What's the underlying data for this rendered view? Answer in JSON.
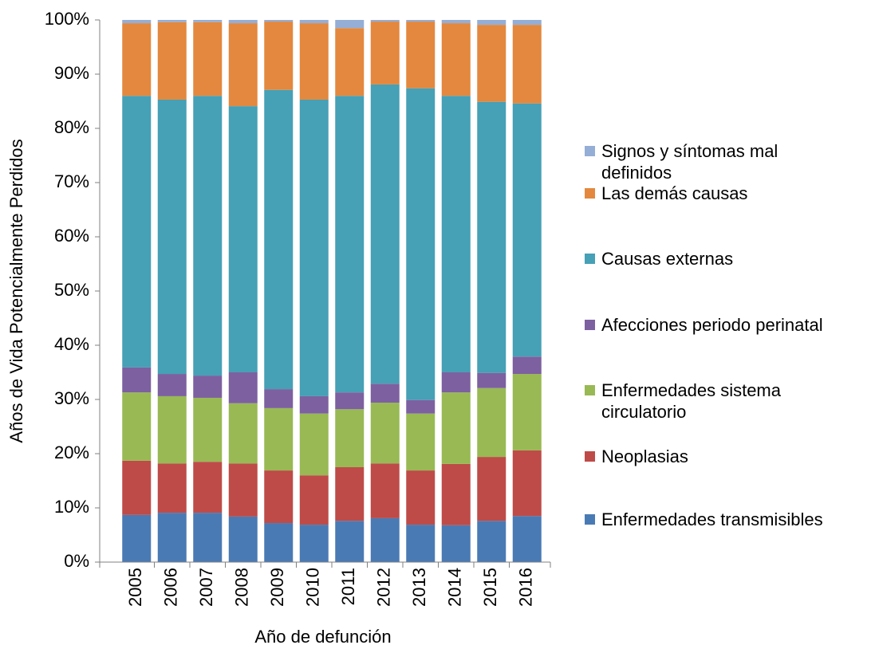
{
  "chart_data": {
    "type": "stacked_bar",
    "ylabel": "Años de Vida Potencialmente Perdidos",
    "xlabel": "Año de defunción",
    "categories": [
      "2005",
      "2006",
      "2007",
      "2008",
      "2009",
      "2010",
      "2011",
      "2012",
      "2013",
      "2014",
      "2015",
      "2016"
    ],
    "ylim": [
      0,
      100
    ],
    "yticks": [
      {
        "value": 0,
        "label": "0%"
      },
      {
        "value": 10,
        "label": "10%"
      },
      {
        "value": 20,
        "label": "20%"
      },
      {
        "value": 30,
        "label": "30%"
      },
      {
        "value": 40,
        "label": "40%"
      },
      {
        "value": 50,
        "label": "50%"
      },
      {
        "value": 60,
        "label": "60%"
      },
      {
        "value": 70,
        "label": "70%"
      },
      {
        "value": 80,
        "label": "80%"
      },
      {
        "value": 90,
        "label": "90%"
      },
      {
        "value": 100,
        "label": "100%"
      }
    ],
    "legend_position": "right",
    "series": [
      {
        "name": "Enfermedades transmisibles",
        "color": "#4a7ab4",
        "values": [
          8.7,
          9.1,
          9.1,
          8.4,
          7.2,
          6.9,
          7.6,
          8.1,
          6.9,
          6.8,
          7.6,
          8.5
        ]
      },
      {
        "name": "Neoplasias",
        "color": "#be4b48",
        "values": [
          10.0,
          9.1,
          9.4,
          9.8,
          9.7,
          9.1,
          9.9,
          10.1,
          10.0,
          11.3,
          11.8,
          12.1
        ]
      },
      {
        "name": "Enfermedades sistema circulatorio",
        "color": "#98b954",
        "values": [
          12.6,
          12.4,
          11.8,
          11.1,
          11.5,
          11.4,
          10.7,
          11.2,
          10.5,
          13.2,
          12.7,
          14.1
        ]
      },
      {
        "name": "Afecciones periodo perinatal",
        "color": "#7d60a0",
        "values": [
          4.6,
          4.1,
          4.1,
          5.7,
          3.5,
          3.2,
          3.1,
          3.5,
          2.5,
          3.7,
          2.8,
          3.2
        ]
      },
      {
        "name": "Causas externas",
        "color": "#46a0b6",
        "values": [
          50.1,
          50.6,
          51.6,
          49.1,
          55.2,
          54.7,
          54.7,
          55.2,
          57.5,
          51.0,
          50.0,
          46.7
        ]
      },
      {
        "name": "Las demás causas",
        "color": "#e3883e",
        "values": [
          13.4,
          14.3,
          13.6,
          15.3,
          12.6,
          14.1,
          12.5,
          11.6,
          12.3,
          13.4,
          14.2,
          14.5
        ]
      },
      {
        "name": "Signos y síntomas mal definidos",
        "color": "#94aed6",
        "values": [
          0.6,
          0.4,
          0.4,
          0.6,
          0.3,
          0.6,
          1.5,
          0.3,
          0.3,
          0.6,
          0.9,
          0.9
        ]
      }
    ]
  }
}
